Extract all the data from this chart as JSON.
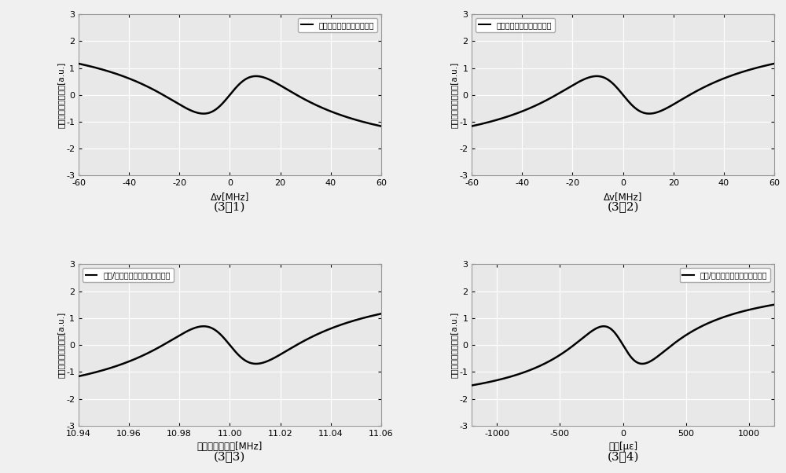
{
  "subplots": [
    {
      "legend": "损耗型受激布里渊散射相移",
      "xlabel": "Δv[MHz]",
      "ylabel": "受激布里渊散射相移[a.u.]",
      "caption": "(3-1)",
      "xlim": [
        -60,
        60
      ],
      "ylim": [
        -3,
        3
      ],
      "xticks": [
        -60,
        -40,
        -20,
        0,
        20,
        40,
        60
      ],
      "yticks": [
        -3,
        -2,
        -1,
        0,
        1,
        2,
        3
      ],
      "x_center": 0.0,
      "x_scale": 17.0,
      "invert": false,
      "legend_loc": "upper right"
    },
    {
      "legend": "增益型受激布里渊散射相移",
      "xlabel": "Δv[MHz]",
      "ylabel": "受激布里渊散射相移[a.u.]",
      "caption": "(3-2)",
      "xlim": [
        -60,
        60
      ],
      "ylim": [
        -3,
        3
      ],
      "xticks": [
        -60,
        -40,
        -20,
        0,
        20,
        40,
        60
      ],
      "yticks": [
        -3,
        -2,
        -1,
        0,
        1,
        2,
        3
      ],
      "x_center": 0.0,
      "x_scale": 17.0,
      "invert": true,
      "legend_loc": "upper left"
    },
    {
      "legend": "损耗/增益型受激布里渊散射相移",
      "xlabel": "微波信号源频率[MHz]",
      "ylabel": "受激布里渊散射相移[a.u.]",
      "caption": "(3-3)",
      "xlim": [
        10.94,
        11.06
      ],
      "ylim": [
        -3,
        3
      ],
      "xticks": [
        10.94,
        10.96,
        10.98,
        11.0,
        11.02,
        11.04,
        11.06
      ],
      "yticks": [
        -3,
        -2,
        -1,
        0,
        1,
        2,
        3
      ],
      "x_center": 11.0,
      "x_scale": 0.017,
      "invert": true,
      "legend_loc": "upper left"
    },
    {
      "legend": "增益/损耗型受激布里渊散射相移",
      "xlabel": "应变[με]",
      "ylabel": "受激布里渊散射相移[a.u.]",
      "caption": "(3-4)",
      "xlim": [
        -1200,
        1200
      ],
      "ylim": [
        -3,
        3
      ],
      "xticks": [
        -1000,
        -500,
        0,
        500,
        1000
      ],
      "yticks": [
        -3,
        -2,
        -1,
        0,
        1,
        2,
        3
      ],
      "x_center": 0.0,
      "x_scale": 250.0,
      "invert": true,
      "legend_loc": "upper right"
    }
  ],
  "bg_color": "#e8e8e8",
  "line_color": "#000000",
  "grid_color": "#ffffff",
  "line_width": 1.8,
  "figure_bg": "#f0f0f0"
}
